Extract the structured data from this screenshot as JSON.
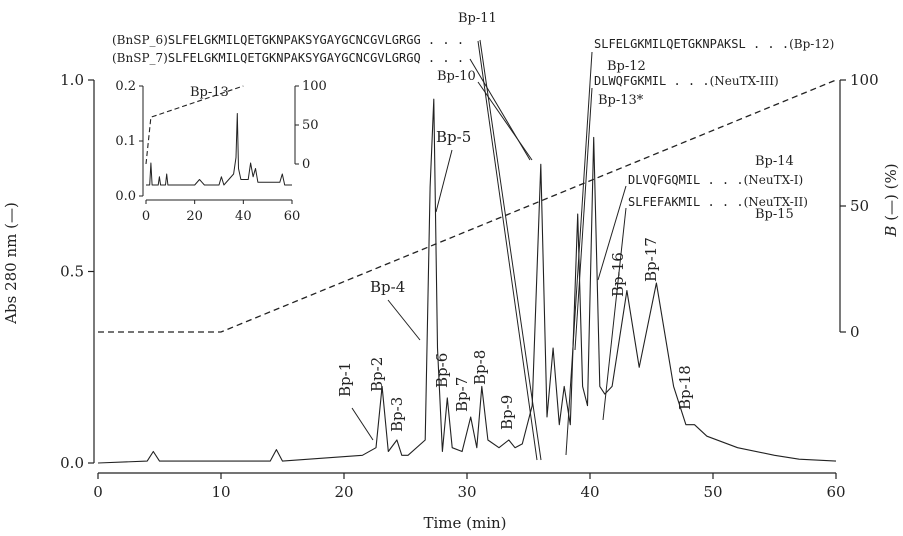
{
  "chart_data": {
    "type": "line",
    "xlabel": "Time (min)",
    "ylabel": "Abs 280 nm (—)",
    "y2label_italic": "B",
    "y2label_rest": " (—) (%)",
    "xlim": [
      0,
      60
    ],
    "ylim": [
      0.0,
      1.0
    ],
    "y2lim": [
      0,
      100
    ],
    "xticks": [
      "0",
      "10",
      "20",
      "30",
      "40",
      "50",
      "60"
    ],
    "yticks": [
      "0.0",
      "0.5",
      "1.0"
    ],
    "y2ticks": [
      "0",
      "50",
      "100"
    ],
    "absorbance": {
      "x": [
        0,
        4,
        4.5,
        5,
        14,
        14.5,
        15,
        21.5,
        22.6,
        23.1,
        23.6,
        24.3,
        24.7,
        25.2,
        26.6,
        27.0,
        27.3,
        27.6,
        28.0,
        28.4,
        28.8,
        29.6,
        30.3,
        30.8,
        31.2,
        31.7,
        32.6,
        33.4,
        33.9,
        34.5,
        35.3,
        36.0,
        36.5,
        37.0,
        37.5,
        37.9,
        38.4,
        39.0,
        39.4,
        39.8,
        40.3,
        40.8,
        41.2,
        41.8,
        43.0,
        44.0,
        45.4,
        46.8,
        47.8,
        48.5,
        49.5,
        52,
        55,
        57,
        60
      ],
      "y": [
        0.0,
        0.005,
        0.03,
        0.005,
        0.005,
        0.035,
        0.005,
        0.02,
        0.04,
        0.2,
        0.03,
        0.06,
        0.02,
        0.02,
        0.06,
        0.72,
        0.95,
        0.3,
        0.03,
        0.17,
        0.04,
        0.03,
        0.12,
        0.04,
        0.2,
        0.06,
        0.04,
        0.06,
        0.04,
        0.05,
        0.15,
        0.78,
        0.12,
        0.3,
        0.1,
        0.2,
        0.1,
        0.65,
        0.2,
        0.15,
        0.85,
        0.2,
        0.18,
        0.2,
        0.45,
        0.25,
        0.47,
        0.2,
        0.1,
        0.1,
        0.07,
        0.04,
        0.02,
        0.01,
        0.005
      ]
    },
    "gradient_B": {
      "x": [
        0,
        10,
        60
      ],
      "y": [
        0,
        0,
        100
      ]
    },
    "peak_labels": [
      {
        "label": "Bp-1",
        "x": 22.8,
        "y": 0.04
      },
      {
        "label": "Bp-2",
        "x": 23.1,
        "y": 0.2
      },
      {
        "label": "Bp-3",
        "x": 24.3,
        "y": 0.06
      },
      {
        "label": "Bp-4",
        "x": 26.8,
        "y": 0.32
      },
      {
        "label": "Bp-5",
        "x": 27.5,
        "y": 0.65
      },
      {
        "label": "Bp-6",
        "x": 28.4,
        "y": 0.17
      },
      {
        "label": "Bp-7",
        "x": 30.3,
        "y": 0.12
      },
      {
        "label": "Bp-8",
        "x": 31.2,
        "y": 0.2
      },
      {
        "label": "Bp-9",
        "x": 33.4,
        "y": 0.06
      },
      {
        "label": "Bp-10",
        "x": 36.0,
        "y": 0.78
      },
      {
        "label": "Bp-11",
        "x": 36.8,
        "y": 0.28
      },
      {
        "label": "Bp-12",
        "x": 37.9,
        "y": 0.2
      },
      {
        "label": "Bp-13*",
        "x": 39.0,
        "y": 0.65
      },
      {
        "label": "Bp-14",
        "x": 40.3,
        "y": 0.85
      },
      {
        "label": "Bp-15",
        "x": 41.2,
        "y": 0.18
      },
      {
        "label": "Bp-16",
        "x": 43.0,
        "y": 0.45
      },
      {
        "label": "Bp-17",
        "x": 45.4,
        "y": 0.47
      },
      {
        "label": "Bp-18",
        "x": 48.5,
        "y": 0.1
      }
    ],
    "sequences": [
      {
        "prefix": "(BnSP_6)",
        "seq": "SLFELGKMILQETGKNPAKSYGAYGCNCGVLGRGG . . ."
      },
      {
        "prefix": "(BnSP_7)",
        "seq": "SLFELGKMILQETGKNPAKSYGAYGCNCGVLGRGQ . . ."
      },
      {
        "seq": "SLFELGKMILQETGKNPAKSL . . .",
        "suffix": "(Bp-12)"
      },
      {
        "seq": "DLWQFGKMIL . . .",
        "suffix": "(NeuTX-III)"
      },
      {
        "seq": "DLVQFGQMIL . . .",
        "suffix": "(NeuTX-I)"
      },
      {
        "seq": "SLFEFAKMIL . . .",
        "suffix": "(NeuTX-II)"
      }
    ],
    "inset": {
      "xlim": [
        0,
        60
      ],
      "ylim": [
        0.0,
        0.2
      ],
      "y2lim": [
        0,
        100
      ],
      "xticks": [
        "0",
        "20",
        "40",
        "60"
      ],
      "yticks": [
        "0.0",
        "0.1",
        "0.2"
      ],
      "y2ticks": [
        "0",
        "50",
        "100"
      ],
      "peak_label": "Bp-13",
      "absorbance": {
        "x": [
          0,
          1.5,
          2,
          2.5,
          5,
          5.5,
          6,
          8,
          8.5,
          9,
          20,
          22,
          23,
          24,
          30,
          31,
          32,
          36,
          37,
          37.5,
          38,
          39,
          42,
          43,
          44,
          45,
          46,
          55,
          56,
          57,
          60
        ],
        "y": [
          0.02,
          0.02,
          0.06,
          0.02,
          0.02,
          0.035,
          0.02,
          0.02,
          0.04,
          0.02,
          0.02,
          0.03,
          0.025,
          0.02,
          0.02,
          0.035,
          0.02,
          0.04,
          0.07,
          0.15,
          0.05,
          0.03,
          0.03,
          0.06,
          0.035,
          0.05,
          0.025,
          0.025,
          0.04,
          0.02,
          0.02
        ]
      },
      "gradient_B": {
        "x": [
          0,
          2,
          40
        ],
        "y": [
          0,
          60,
          100
        ]
      }
    }
  }
}
